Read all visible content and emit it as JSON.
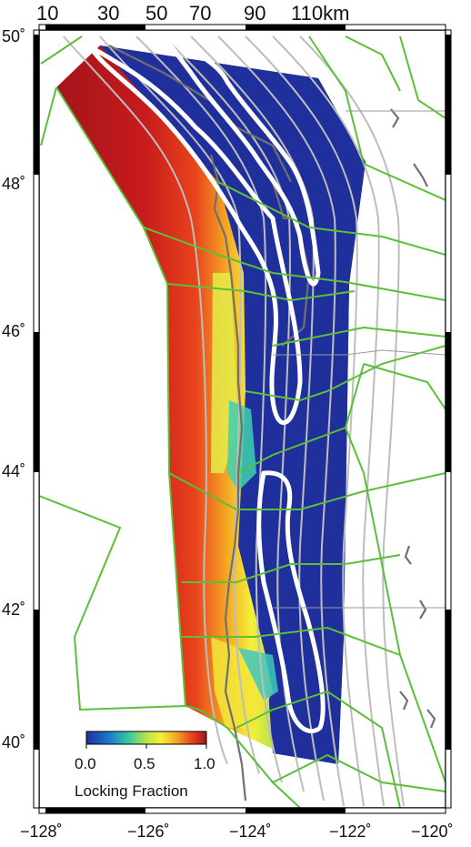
{
  "map": {
    "depth_contour_labels": [
      "10",
      "30",
      "50",
      "70",
      "90",
      "110km"
    ],
    "latitude_labels": [
      "50˚",
      "48˚",
      "46˚",
      "44˚",
      "42˚",
      "40˚"
    ],
    "longitude_labels": [
      "−128˚",
      "−126˚",
      "−124˚",
      "−122˚",
      "−120˚"
    ],
    "legend": {
      "title": "Locking Fraction",
      "ticks": [
        "0.0",
        "0.5",
        "1.0"
      ],
      "colors": [
        "#1f2f9b",
        "#1e7fd0",
        "#38c8a0",
        "#b8e24a",
        "#f5f03a",
        "#f5a623",
        "#e8431c",
        "#a3151b"
      ]
    },
    "colors": {
      "plate_boundary": "#5cbf3a",
      "depth_contour": "#bdbdbd",
      "coastline": "#707070",
      "slip_outline": "#ffffff",
      "frame": "#000000"
    }
  }
}
